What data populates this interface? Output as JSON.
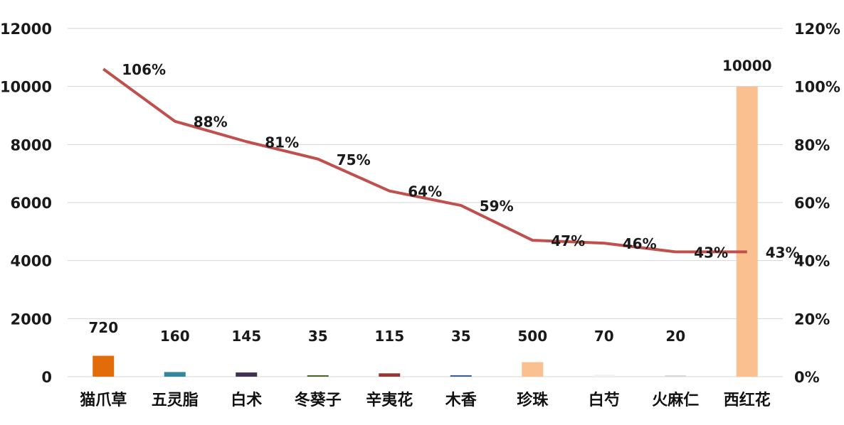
{
  "chart_data": {
    "type": "bar",
    "categories": [
      "猫爪草",
      "五灵脂",
      "白术",
      "冬葵子",
      "辛夷花",
      "木香",
      "珍珠",
      "白芍",
      "火麻仁",
      "西红花"
    ],
    "series": [
      {
        "axis": "left",
        "type": "bar",
        "values": [
          720,
          160,
          145,
          35,
          115,
          35,
          500,
          70,
          20,
          10000
        ],
        "colors": [
          "#e36c0a",
          "#31859c",
          "#403151",
          "#4f6228",
          "#953735",
          "#366092",
          "#fac090",
          "#f2f2f2",
          "#d9d9d9",
          "#fac090"
        ]
      },
      {
        "axis": "right",
        "type": "line",
        "values": [
          1.06,
          0.88,
          0.81,
          0.75,
          0.64,
          0.59,
          0.47,
          0.46,
          0.43,
          0.43
        ],
        "labels": [
          "106%",
          "88%",
          "81%",
          "75%",
          "64%",
          "59%",
          "47%",
          "46%",
          "43%",
          "43%"
        ],
        "color": "#c0504d"
      }
    ],
    "y_left": {
      "min": 0,
      "max": 12000,
      "ticks": [
        "0",
        "2000",
        "4000",
        "6000",
        "8000",
        "10000",
        "12000"
      ]
    },
    "y_right": {
      "min": 0,
      "max": 1.2,
      "ticks": [
        "0%",
        "20%",
        "40%",
        "60%",
        "80%",
        "100%",
        "120%"
      ]
    },
    "grid": true,
    "legend": "none",
    "title": "",
    "xlabel": "",
    "ylabel": ""
  }
}
